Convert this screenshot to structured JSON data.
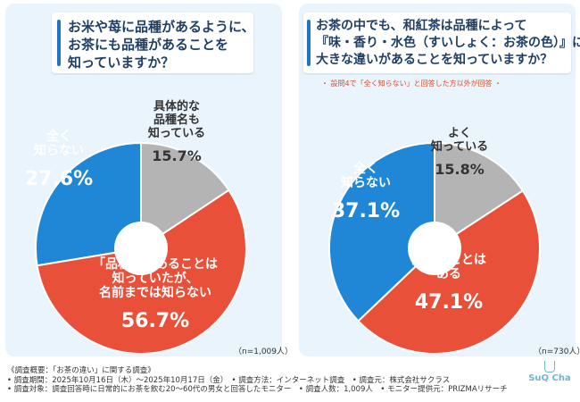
{
  "left_question": {
    "lines": [
      "お米や苺に品種があるように、",
      "お茶にも品種があることを",
      "知っていますか？"
    ]
  },
  "right_question": {
    "lines": [
      "お茶の中でも、和紅茶は品種によって",
      "『味・香り・水色（すいしょく：お茶の色）』に",
      "大きな違いがあることを知っていますか？"
    ]
  },
  "right_note": "・ 設問4で「全く知らない」と回答した方以外が回答 ・",
  "chart_data": [
    {
      "type": "pie",
      "title": "お米や苺に品種があるように、お茶にも品種があることを知っていますか？",
      "n": "（n=1,009人）",
      "slices": [
        {
          "label_lines": [
            "具体的な",
            "品種名も",
            "知っている"
          ],
          "value": 15.7,
          "value_text": "15.7%",
          "color": "#b4b4b4"
        },
        {
          "label_lines": [
            "「品種」があることは",
            "知っていたが、",
            "名前までは知らない"
          ],
          "value": 56.7,
          "value_text": "56.7%",
          "color": "#e8503a"
        },
        {
          "label_lines": [
            "全く",
            "知らない"
          ],
          "value": 27.6,
          "value_text": "27.6%",
          "color": "#1f87d6"
        }
      ]
    },
    {
      "type": "pie",
      "title": "お茶の中でも、和紅茶は品種によって『味・香り・水色（すいしょく：お茶の色）』に大きな違いがあることを知っていますか？",
      "n": "（n=730人）",
      "slices": [
        {
          "label_lines": [
            "よく",
            "知っている"
          ],
          "value": 15.8,
          "value_text": "15.8%",
          "color": "#b4b4b4"
        },
        {
          "label_lines": [
            "聞いたことは",
            "ある"
          ],
          "value": 47.1,
          "value_text": "47.1%",
          "color": "#e8503a"
        },
        {
          "label_lines": [
            "全く",
            "知らない"
          ],
          "value": 37.1,
          "value_text": "37.1%",
          "color": "#1f87d6"
        }
      ]
    }
  ],
  "footer": {
    "lines": [
      "《調査概要：「お茶の違い」に関する調査》",
      "• 調査期間：2025年10月16日（木）～2025年10月17日（金）　• 調査方法：インターネット調査　• 調査元：株式会社サクラス",
      "• 調査対象：調査回答時に日常的にお茶を飲む20～60代の男女と回答したモニター　• 調査人数：1,009人　• モニター提供元：PRIZMAリサーチ"
    ]
  },
  "logo": {
    "text": "SuQ Cha"
  }
}
